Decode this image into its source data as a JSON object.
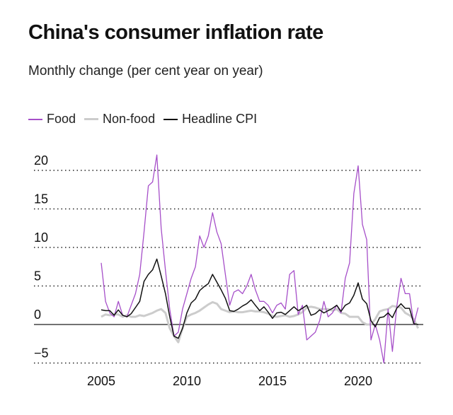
{
  "chart_data": {
    "type": "line",
    "title": "China's consumer inflation rate",
    "subtitle": "Monthly change (per cent year on year)",
    "xlabel": "",
    "ylabel": "",
    "ylim": [
      -5,
      23
    ],
    "xlim": [
      2005,
      2023.6
    ],
    "yticks": [
      20,
      15,
      10,
      5,
      0,
      -5
    ],
    "ytick_labels": [
      "20",
      "15",
      "10",
      "5",
      "0",
      "−5"
    ],
    "xticks": [
      2005,
      2010,
      2015,
      2020
    ],
    "xtick_labels": [
      "2005",
      "2010",
      "2015",
      "2020"
    ],
    "grid": "dotted horizontal",
    "legend": "top-left",
    "x": [
      "2005-01",
      "2005-04",
      "2005-07",
      "2005-10",
      "2006-01",
      "2006-04",
      "2006-07",
      "2006-10",
      "2007-01",
      "2007-04",
      "2007-07",
      "2007-10",
      "2008-01",
      "2008-04",
      "2008-07",
      "2008-10",
      "2009-01",
      "2009-04",
      "2009-07",
      "2009-10",
      "2010-01",
      "2010-04",
      "2010-07",
      "2010-10",
      "2011-01",
      "2011-04",
      "2011-07",
      "2011-10",
      "2012-01",
      "2012-04",
      "2012-07",
      "2012-10",
      "2013-01",
      "2013-04",
      "2013-07",
      "2013-10",
      "2014-01",
      "2014-04",
      "2014-07",
      "2014-10",
      "2015-01",
      "2015-04",
      "2015-07",
      "2015-10",
      "2016-01",
      "2016-04",
      "2016-07",
      "2016-10",
      "2017-01",
      "2017-04",
      "2017-07",
      "2017-10",
      "2018-01",
      "2018-04",
      "2018-07",
      "2018-10",
      "2019-01",
      "2019-04",
      "2019-07",
      "2019-10",
      "2020-01",
      "2020-04",
      "2020-07",
      "2020-10",
      "2021-01",
      "2021-04",
      "2021-07",
      "2021-10",
      "2022-01",
      "2022-04",
      "2022-07",
      "2022-10",
      "2023-01",
      "2023-04",
      "2023-07"
    ],
    "series": [
      {
        "name": "Food",
        "color": "#a64fc9",
        "values": [
          8.0,
          3.0,
          1.5,
          1.0,
          3.0,
          1.2,
          1.0,
          2.5,
          4.0,
          6.5,
          12.0,
          18.0,
          18.5,
          22.0,
          12.5,
          7.0,
          2.0,
          -1.5,
          -1.0,
          2.0,
          4.0,
          6.0,
          7.5,
          11.5,
          10.0,
          11.5,
          14.5,
          12.0,
          10.5,
          6.5,
          2.5,
          4.2,
          4.5,
          4.0,
          5.0,
          6.5,
          4.5,
          3.0,
          3.0,
          2.5,
          1.5,
          2.5,
          2.8,
          2.0,
          6.5,
          7.0,
          1.3,
          2.5,
          -2.0,
          -1.5,
          -1.0,
          0.5,
          3.0,
          1.0,
          1.5,
          2.5,
          1.5,
          6.0,
          8.0,
          17.0,
          20.6,
          13.0,
          11.0,
          -2.0,
          0.0,
          -2.0,
          -5.0,
          2.0,
          -3.5,
          2.3,
          6.0,
          4.0,
          4.0,
          0.0,
          2.2
        ]
      },
      {
        "name": "Non-food",
        "color": "#cccccc",
        "values": [
          1.0,
          1.3,
          1.2,
          1.3,
          1.3,
          1.0,
          1.2,
          1.0,
          1.0,
          1.2,
          1.1,
          1.3,
          1.5,
          1.8,
          2.0,
          1.5,
          -0.5,
          -1.5,
          -2.3,
          -0.5,
          1.0,
          1.3,
          1.5,
          1.8,
          2.2,
          2.6,
          2.9,
          2.7,
          2.0,
          1.8,
          1.6,
          1.7,
          1.6,
          1.6,
          1.7,
          1.8,
          1.7,
          1.7,
          1.6,
          1.4,
          1.1,
          1.0,
          1.1,
          1.2,
          1.0,
          1.1,
          1.3,
          1.6,
          2.2,
          2.3,
          2.2,
          2.0,
          2.0,
          2.0,
          1.8,
          2.0,
          1.5,
          1.4,
          1.0,
          1.0,
          1.0,
          0.3,
          0.0,
          0.0,
          0.7,
          1.7,
          1.9,
          2.0,
          2.4,
          2.3,
          2.2,
          1.5,
          1.2,
          0.7,
          -0.5
        ]
      },
      {
        "name": "Headline CPI",
        "color": "#111111",
        "values": [
          1.9,
          1.8,
          1.8,
          1.2,
          1.9,
          1.2,
          1.0,
          1.4,
          2.2,
          3.0,
          5.6,
          6.5,
          7.1,
          8.5,
          6.3,
          4.0,
          1.0,
          -1.5,
          -1.8,
          -0.5,
          1.5,
          2.8,
          3.3,
          4.4,
          4.9,
          5.3,
          6.5,
          5.5,
          4.5,
          3.4,
          1.8,
          1.7,
          2.0,
          2.4,
          2.7,
          3.2,
          2.5,
          1.8,
          2.3,
          1.6,
          0.8,
          1.5,
          1.6,
          1.3,
          1.8,
          2.3,
          1.8,
          2.1,
          2.5,
          1.2,
          1.4,
          1.9,
          1.5,
          1.8,
          2.1,
          2.5,
          1.7,
          2.5,
          2.8,
          3.8,
          5.4,
          3.3,
          2.7,
          0.5,
          -0.3,
          0.9,
          1.0,
          1.5,
          0.9,
          2.1,
          2.7,
          2.1,
          2.1,
          0.1,
          0.0
        ]
      }
    ]
  }
}
